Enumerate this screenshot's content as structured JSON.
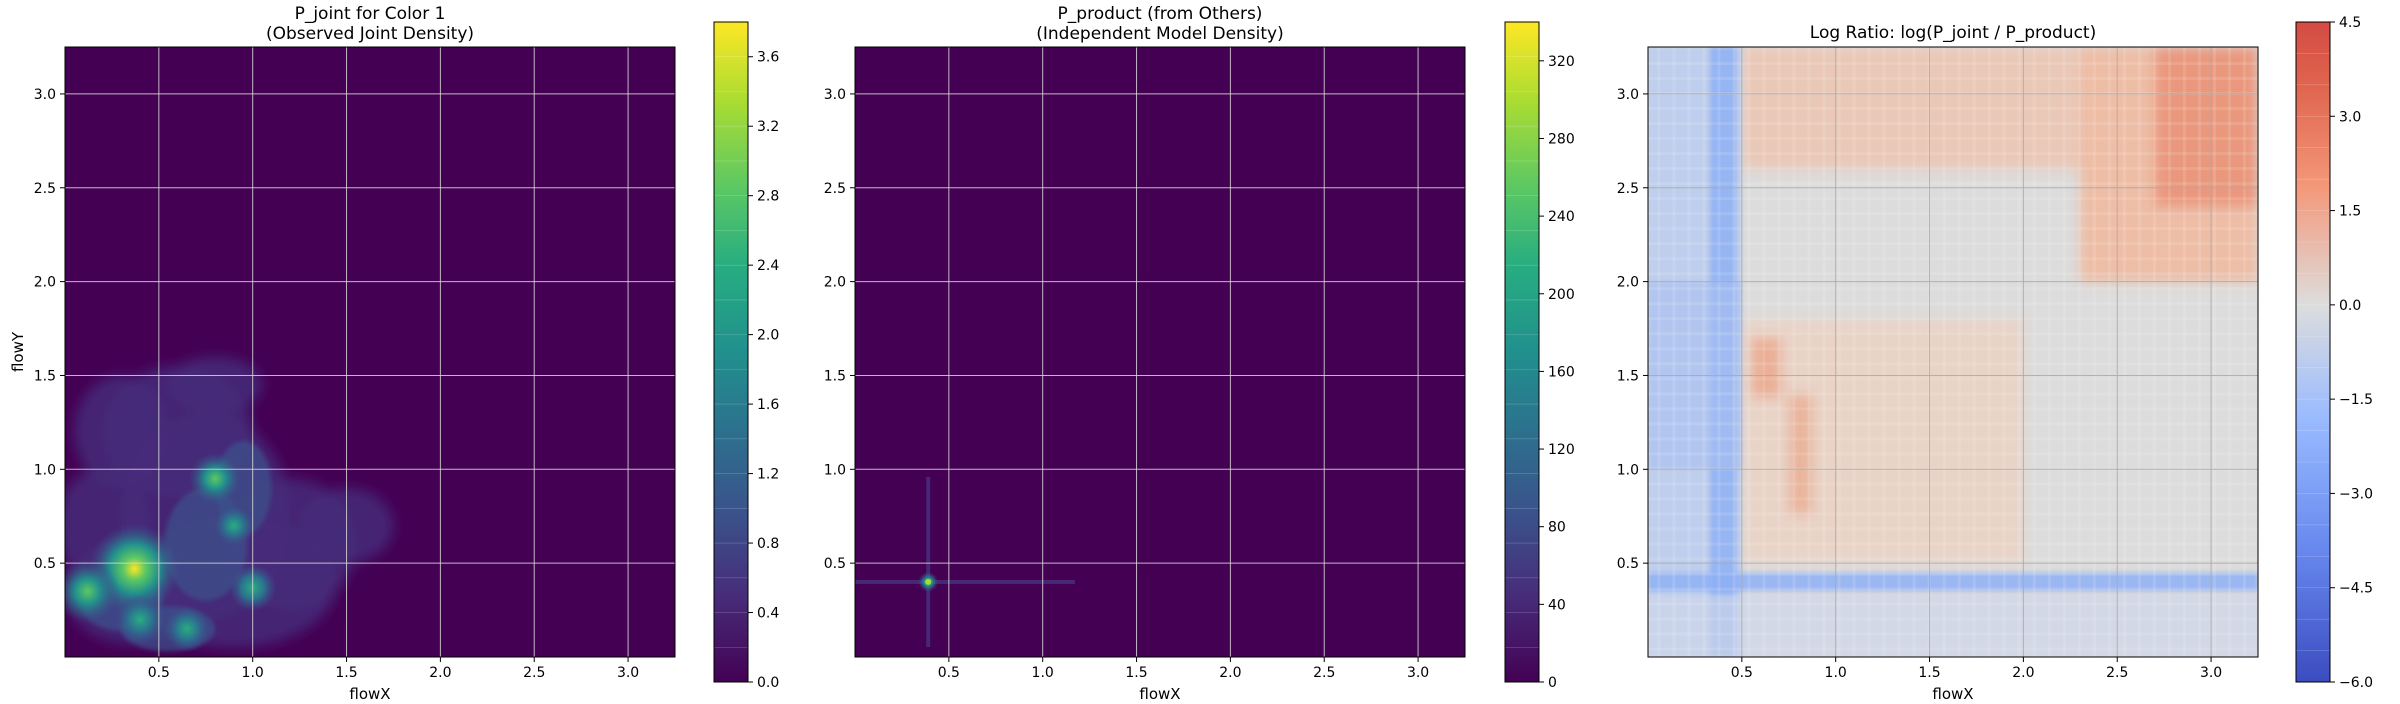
{
  "chart_data": [
    {
      "type": "heatmap",
      "title": "P_joint for Color 1",
      "subtitle": "(Observed Joint Density)",
      "xlabel": "flowX",
      "ylabel": "flowY",
      "xlim": [
        0.0,
        3.25
      ],
      "ylim": [
        0.0,
        3.25
      ],
      "x_ticks": [
        "0.5",
        "1.0",
        "1.5",
        "2.0",
        "2.5",
        "3.0"
      ],
      "y_ticks": [
        "0.5",
        "1.0",
        "1.5",
        "2.0",
        "2.5",
        "3.0"
      ],
      "grid": true,
      "colormap": "viridis",
      "colorbar_range": [
        0.0,
        3.8
      ],
      "colorbar_ticks": [
        "0.0",
        "0.4",
        "0.8",
        "1.2",
        "1.6",
        "2.0",
        "2.4",
        "2.8",
        "3.2",
        "3.6"
      ],
      "peaks": [
        {
          "x": 0.37,
          "y": 0.47,
          "value": 3.7
        },
        {
          "x": 0.12,
          "y": 0.35,
          "value": 2.2
        },
        {
          "x": 0.8,
          "y": 0.95,
          "value": 1.6
        },
        {
          "x": 0.4,
          "y": 0.2,
          "value": 1.4
        },
        {
          "x": 1.0,
          "y": 0.37,
          "value": 1.3
        },
        {
          "x": 0.65,
          "y": 0.15,
          "value": 1.2
        },
        {
          "x": 0.9,
          "y": 0.7,
          "value": 0.9
        }
      ]
    },
    {
      "type": "heatmap",
      "title": "P_product (from Others)",
      "subtitle": "(Independent Model Density)",
      "xlabel": "flowX",
      "ylabel": "",
      "xlim": [
        0.0,
        3.25
      ],
      "ylim": [
        0.0,
        3.25
      ],
      "x_ticks": [
        "0.5",
        "1.0",
        "1.5",
        "2.0",
        "2.5",
        "3.0"
      ],
      "y_ticks": [
        "0.5",
        "1.0",
        "1.5",
        "2.0",
        "2.5",
        "3.0"
      ],
      "grid": true,
      "colormap": "viridis",
      "colorbar_range": [
        0.0,
        340
      ],
      "colorbar_ticks": [
        "0",
        "40",
        "80",
        "120",
        "160",
        "200",
        "240",
        "280",
        "320"
      ],
      "peaks": [
        {
          "x": 0.39,
          "y": 0.4,
          "value": 210
        }
      ]
    },
    {
      "type": "heatmap",
      "title": "Log Ratio: log(P_joint / P_product)",
      "xlabel": "flowX",
      "ylabel": "",
      "xlim": [
        0.0,
        3.25
      ],
      "ylim": [
        0.0,
        3.25
      ],
      "x_ticks": [
        "0.5",
        "1.0",
        "1.5",
        "2.0",
        "2.5",
        "3.0"
      ],
      "y_ticks": [
        "0.5",
        "1.0",
        "1.5",
        "2.0",
        "2.5",
        "3.0"
      ],
      "grid": true,
      "colormap": "coolwarm",
      "colorbar_range": [
        -6.0,
        4.5
      ],
      "colorbar_ticks": [
        "−6.0",
        "−4.5",
        "−3.0",
        "−1.5",
        "0.0",
        "1.5",
        "3.0",
        "4.5"
      ]
    }
  ]
}
